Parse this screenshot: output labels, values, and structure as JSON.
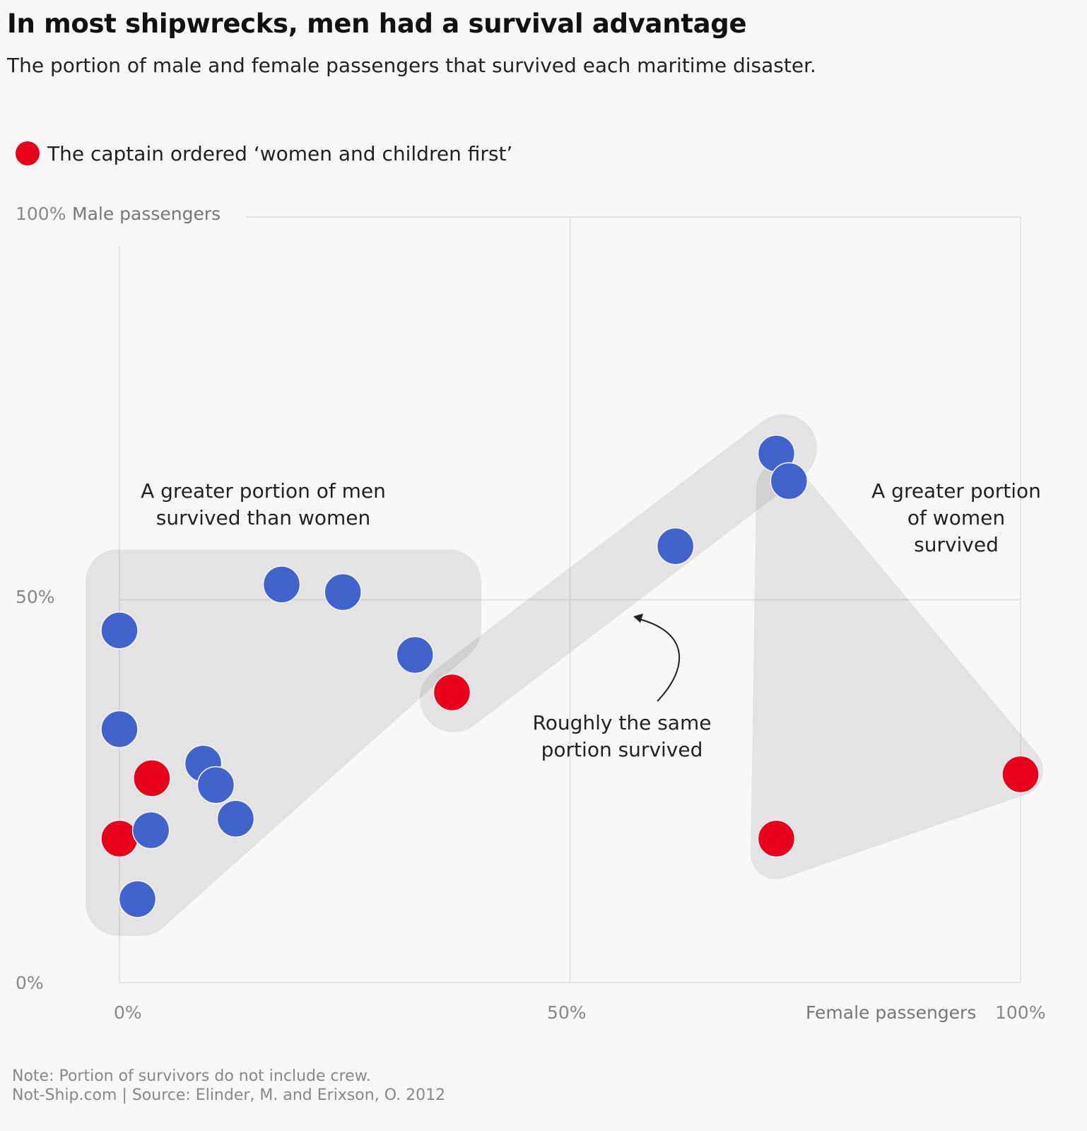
{
  "title": "In most shipwrecks, men had a survival advantage",
  "subtitle": "The portion of male and female passengers that survived each maritime disaster.",
  "legend": {
    "label": "The captain ordered ‘women and children first’",
    "color": "#e8001c"
  },
  "colors": {
    "default": "#4263cc",
    "women_children_first": "#e8001c",
    "region": "#e2e2e2"
  },
  "annotations": {
    "men": "A greater portion of men survived than women",
    "men_line1": "A greater portion of men",
    "men_line2": "survived than women",
    "same_line1": "Roughly the same",
    "same_line2": "portion survived",
    "women_line1": "A greater portion",
    "women_line2": "of women",
    "women_line3": "survived"
  },
  "footer": {
    "note": "Note: Portion of survivors do not include crew.",
    "source": "Not-Ship.com | Source: Elinder, M. and Erixson, O. 2012"
  },
  "chart_data": {
    "type": "scatter",
    "title": "In most shipwrecks, men had a survival advantage",
    "xlabel": "Female passengers",
    "ylabel": "Male passengers",
    "xlim": [
      0,
      100
    ],
    "ylim": [
      0,
      100
    ],
    "x_ticks": [
      "0%",
      "50%",
      "100%"
    ],
    "y_ticks": [
      "0%",
      "50%",
      "100%"
    ],
    "grid": true,
    "points": [
      {
        "x": 0,
        "y": 46,
        "wcf": false
      },
      {
        "x": 18,
        "y": 52,
        "wcf": false
      },
      {
        "x": 24.8,
        "y": 51,
        "wcf": false
      },
      {
        "x": 32.8,
        "y": 42.8,
        "wcf": false
      },
      {
        "x": 36.9,
        "y": 37.9,
        "wcf": true
      },
      {
        "x": 0,
        "y": 33.1,
        "wcf": false
      },
      {
        "x": 9.3,
        "y": 28.6,
        "wcf": false
      },
      {
        "x": 3.6,
        "y": 26.7,
        "wcf": true
      },
      {
        "x": 10.7,
        "y": 25.8,
        "wcf": false
      },
      {
        "x": 12.9,
        "y": 21.4,
        "wcf": false
      },
      {
        "x": 0,
        "y": 18.8,
        "wcf": true
      },
      {
        "x": 3.5,
        "y": 19.9,
        "wcf": false
      },
      {
        "x": 2,
        "y": 10.9,
        "wcf": false
      },
      {
        "x": 61.7,
        "y": 57,
        "wcf": false
      },
      {
        "x": 72.9,
        "y": 69.1,
        "wcf": false
      },
      {
        "x": 74.3,
        "y": 65.5,
        "wcf": false
      },
      {
        "x": 72.9,
        "y": 18.8,
        "wcf": true
      },
      {
        "x": 100,
        "y": 27.2,
        "wcf": true
      }
    ]
  }
}
